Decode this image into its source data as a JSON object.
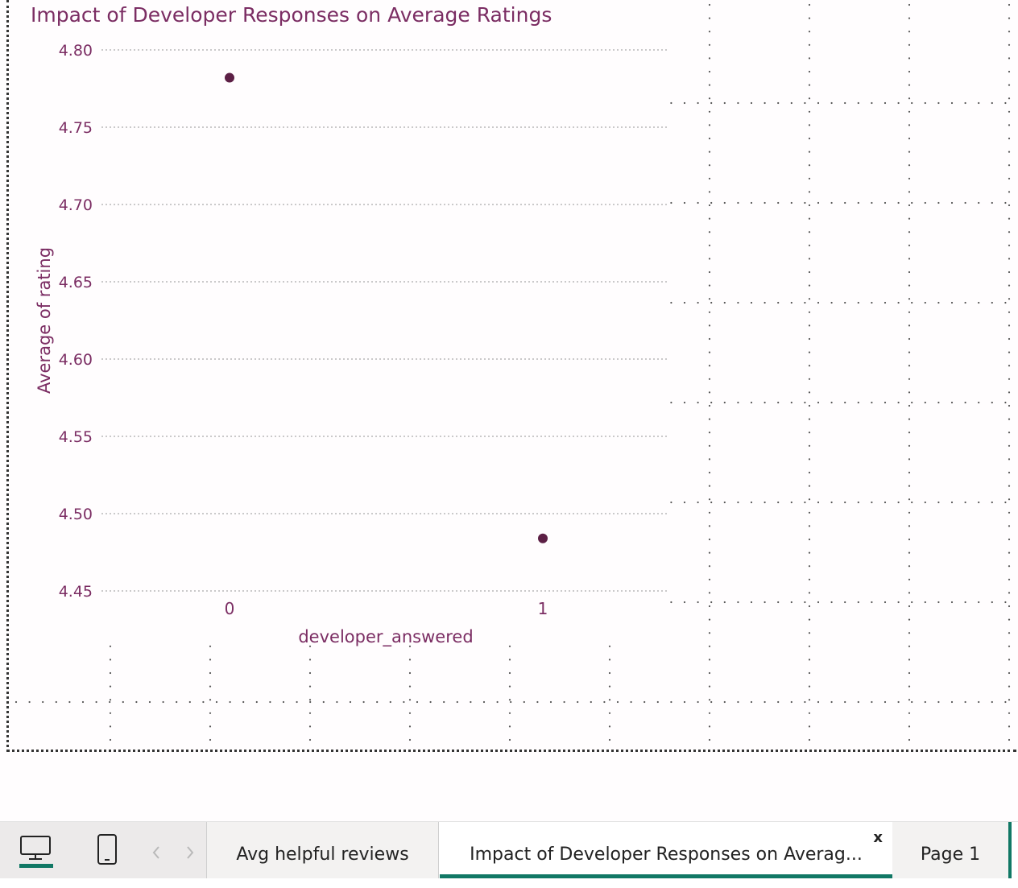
{
  "visual": {
    "title": "Impact of Developer Responses on Average Ratings"
  },
  "chart_data": {
    "type": "scatter",
    "title": "Impact of Developer Responses on Average Ratings",
    "xlabel": "developer_answered",
    "ylabel": "Average of rating",
    "x": [
      0,
      1
    ],
    "y": [
      4.782,
      4.484
    ],
    "x_ticks": [
      "0",
      "1"
    ],
    "y_ticks": [
      "4.80",
      "4.75",
      "4.70",
      "4.65",
      "4.60",
      "4.55",
      "4.50",
      "4.45"
    ],
    "ylim": [
      4.45,
      4.8
    ],
    "grid": "horizontal dotted",
    "marker_color": "#5c1f45",
    "text_color": "#7b2d63"
  },
  "page_tabs": {
    "items": [
      {
        "label": "Avg helpful reviews",
        "active": false
      },
      {
        "label": "Impact of Developer Responses on Averag...",
        "active": true
      },
      {
        "label": "Page 1",
        "active": false
      }
    ],
    "close_label": "x"
  },
  "view_switch": {
    "desktop_icon": "monitor-icon",
    "mobile_icon": "phone-icon",
    "prev_icon": "chevron-left-icon",
    "next_icon": "chevron-right-icon"
  },
  "colors": {
    "accent": "#117865",
    "text": "#7b2d63"
  }
}
